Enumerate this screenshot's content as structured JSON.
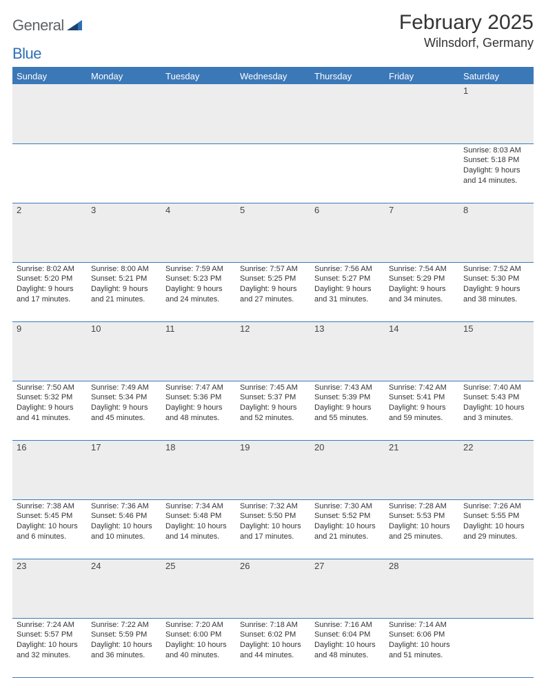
{
  "brand": {
    "part1": "General",
    "part2": "Blue"
  },
  "title": "February 2025",
  "location": "Wilnsdorf, Germany",
  "colors": {
    "header_bg": "#3b78b8",
    "header_text": "#ffffff",
    "daynum_bg": "#ededed",
    "border": "#3b78b8",
    "brand_gray": "#5f6368",
    "brand_blue": "#2d6fb6",
    "text": "#333333"
  },
  "fonts": {
    "title_size": 30,
    "location_size": 18,
    "header_size": 13,
    "daynum_size": 13,
    "body_size": 11
  },
  "day_headers": [
    "Sunday",
    "Monday",
    "Tuesday",
    "Wednesday",
    "Thursday",
    "Friday",
    "Saturday"
  ],
  "weeks": [
    [
      null,
      null,
      null,
      null,
      null,
      null,
      {
        "n": "1",
        "sr": "Sunrise: 8:03 AM",
        "ss": "Sunset: 5:18 PM",
        "d1": "Daylight: 9 hours",
        "d2": "and 14 minutes."
      }
    ],
    [
      {
        "n": "2",
        "sr": "Sunrise: 8:02 AM",
        "ss": "Sunset: 5:20 PM",
        "d1": "Daylight: 9 hours",
        "d2": "and 17 minutes."
      },
      {
        "n": "3",
        "sr": "Sunrise: 8:00 AM",
        "ss": "Sunset: 5:21 PM",
        "d1": "Daylight: 9 hours",
        "d2": "and 21 minutes."
      },
      {
        "n": "4",
        "sr": "Sunrise: 7:59 AM",
        "ss": "Sunset: 5:23 PM",
        "d1": "Daylight: 9 hours",
        "d2": "and 24 minutes."
      },
      {
        "n": "5",
        "sr": "Sunrise: 7:57 AM",
        "ss": "Sunset: 5:25 PM",
        "d1": "Daylight: 9 hours",
        "d2": "and 27 minutes."
      },
      {
        "n": "6",
        "sr": "Sunrise: 7:56 AM",
        "ss": "Sunset: 5:27 PM",
        "d1": "Daylight: 9 hours",
        "d2": "and 31 minutes."
      },
      {
        "n": "7",
        "sr": "Sunrise: 7:54 AM",
        "ss": "Sunset: 5:29 PM",
        "d1": "Daylight: 9 hours",
        "d2": "and 34 minutes."
      },
      {
        "n": "8",
        "sr": "Sunrise: 7:52 AM",
        "ss": "Sunset: 5:30 PM",
        "d1": "Daylight: 9 hours",
        "d2": "and 38 minutes."
      }
    ],
    [
      {
        "n": "9",
        "sr": "Sunrise: 7:50 AM",
        "ss": "Sunset: 5:32 PM",
        "d1": "Daylight: 9 hours",
        "d2": "and 41 minutes."
      },
      {
        "n": "10",
        "sr": "Sunrise: 7:49 AM",
        "ss": "Sunset: 5:34 PM",
        "d1": "Daylight: 9 hours",
        "d2": "and 45 minutes."
      },
      {
        "n": "11",
        "sr": "Sunrise: 7:47 AM",
        "ss": "Sunset: 5:36 PM",
        "d1": "Daylight: 9 hours",
        "d2": "and 48 minutes."
      },
      {
        "n": "12",
        "sr": "Sunrise: 7:45 AM",
        "ss": "Sunset: 5:37 PM",
        "d1": "Daylight: 9 hours",
        "d2": "and 52 minutes."
      },
      {
        "n": "13",
        "sr": "Sunrise: 7:43 AM",
        "ss": "Sunset: 5:39 PM",
        "d1": "Daylight: 9 hours",
        "d2": "and 55 minutes."
      },
      {
        "n": "14",
        "sr": "Sunrise: 7:42 AM",
        "ss": "Sunset: 5:41 PM",
        "d1": "Daylight: 9 hours",
        "d2": "and 59 minutes."
      },
      {
        "n": "15",
        "sr": "Sunrise: 7:40 AM",
        "ss": "Sunset: 5:43 PM",
        "d1": "Daylight: 10 hours",
        "d2": "and 3 minutes."
      }
    ],
    [
      {
        "n": "16",
        "sr": "Sunrise: 7:38 AM",
        "ss": "Sunset: 5:45 PM",
        "d1": "Daylight: 10 hours",
        "d2": "and 6 minutes."
      },
      {
        "n": "17",
        "sr": "Sunrise: 7:36 AM",
        "ss": "Sunset: 5:46 PM",
        "d1": "Daylight: 10 hours",
        "d2": "and 10 minutes."
      },
      {
        "n": "18",
        "sr": "Sunrise: 7:34 AM",
        "ss": "Sunset: 5:48 PM",
        "d1": "Daylight: 10 hours",
        "d2": "and 14 minutes."
      },
      {
        "n": "19",
        "sr": "Sunrise: 7:32 AM",
        "ss": "Sunset: 5:50 PM",
        "d1": "Daylight: 10 hours",
        "d2": "and 17 minutes."
      },
      {
        "n": "20",
        "sr": "Sunrise: 7:30 AM",
        "ss": "Sunset: 5:52 PM",
        "d1": "Daylight: 10 hours",
        "d2": "and 21 minutes."
      },
      {
        "n": "21",
        "sr": "Sunrise: 7:28 AM",
        "ss": "Sunset: 5:53 PM",
        "d1": "Daylight: 10 hours",
        "d2": "and 25 minutes."
      },
      {
        "n": "22",
        "sr": "Sunrise: 7:26 AM",
        "ss": "Sunset: 5:55 PM",
        "d1": "Daylight: 10 hours",
        "d2": "and 29 minutes."
      }
    ],
    [
      {
        "n": "23",
        "sr": "Sunrise: 7:24 AM",
        "ss": "Sunset: 5:57 PM",
        "d1": "Daylight: 10 hours",
        "d2": "and 32 minutes."
      },
      {
        "n": "24",
        "sr": "Sunrise: 7:22 AM",
        "ss": "Sunset: 5:59 PM",
        "d1": "Daylight: 10 hours",
        "d2": "and 36 minutes."
      },
      {
        "n": "25",
        "sr": "Sunrise: 7:20 AM",
        "ss": "Sunset: 6:00 PM",
        "d1": "Daylight: 10 hours",
        "d2": "and 40 minutes."
      },
      {
        "n": "26",
        "sr": "Sunrise: 7:18 AM",
        "ss": "Sunset: 6:02 PM",
        "d1": "Daylight: 10 hours",
        "d2": "and 44 minutes."
      },
      {
        "n": "27",
        "sr": "Sunrise: 7:16 AM",
        "ss": "Sunset: 6:04 PM",
        "d1": "Daylight: 10 hours",
        "d2": "and 48 minutes."
      },
      {
        "n": "28",
        "sr": "Sunrise: 7:14 AM",
        "ss": "Sunset: 6:06 PM",
        "d1": "Daylight: 10 hours",
        "d2": "and 51 minutes."
      },
      null
    ]
  ]
}
